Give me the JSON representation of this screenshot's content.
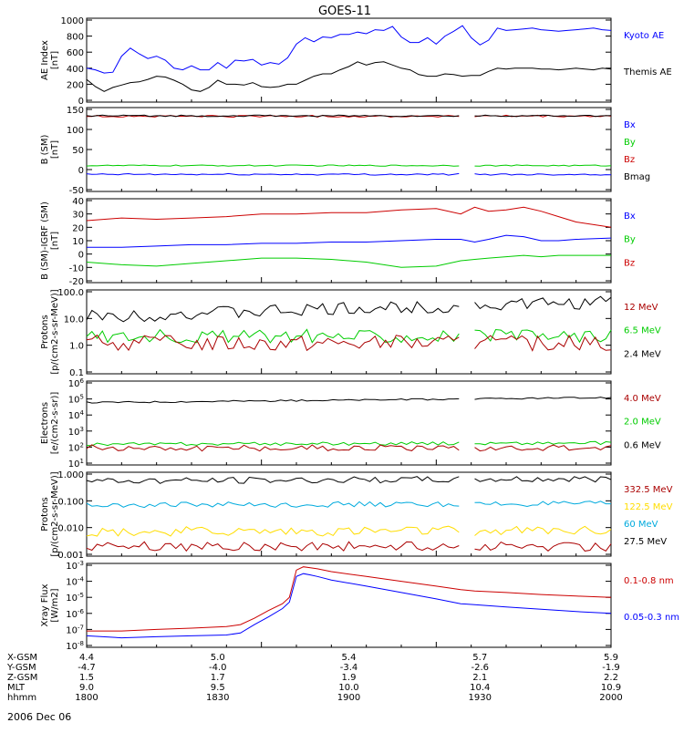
{
  "title": "GOES-11",
  "date_label": "2006 Dec 06",
  "colors": {
    "black": "#000000",
    "blue": "#0000ff",
    "red": "#cc0000",
    "green": "#00cc00",
    "cyan": "#00aadd",
    "yellow": "#ffdd00",
    "darkred": "#aa0000"
  },
  "time_axis": {
    "rows": [
      {
        "label": "X-GSM",
        "values": [
          "4.4",
          "5.0",
          "5.4",
          "5.7",
          "5.9"
        ]
      },
      {
        "label": "Y-GSM",
        "values": [
          "-4.7",
          "-4.0",
          "-3.4",
          "-2.6",
          "-1.9"
        ]
      },
      {
        "label": "Z-GSM",
        "values": [
          "1.5",
          "1.7",
          "1.9",
          "2.1",
          "2.2"
        ]
      },
      {
        "label": "MLT",
        "values": [
          "9.0",
          "9.5",
          "10.0",
          "10.4",
          "10.9"
        ]
      },
      {
        "label": "hhmm",
        "values": [
          "1800",
          "1830",
          "1900",
          "1930",
          "2000"
        ]
      }
    ]
  },
  "chart_data": [
    {
      "type": "line",
      "id": "ae",
      "ylabel": "AE Index\n[nT]",
      "ylim": [
        0,
        1000
      ],
      "yticks": [
        "0",
        "200",
        "400",
        "600",
        "800",
        "1000"
      ],
      "ytick_values": [
        0,
        200,
        400,
        600,
        800,
        1000
      ],
      "series": [
        {
          "name": "Kyoto AE",
          "color": "#0000ff",
          "x": [
            0,
            2,
            4,
            6,
            8,
            10,
            12,
            14,
            16,
            18,
            20,
            22,
            24,
            26,
            28,
            30,
            32,
            34,
            36,
            38,
            40,
            42,
            44,
            46,
            48,
            50,
            52,
            54,
            56,
            58,
            60,
            62,
            64,
            66,
            68,
            70,
            72,
            74,
            76,
            78,
            80,
            82,
            84,
            86,
            88,
            90,
            92,
            94,
            96,
            98,
            100,
            102,
            104,
            106,
            108,
            110,
            112,
            114,
            116,
            118,
            120
          ],
          "y": [
            400,
            380,
            340,
            350,
            550,
            650,
            580,
            520,
            550,
            500,
            400,
            380,
            430,
            380,
            380,
            470,
            400,
            500,
            490,
            510,
            440,
            470,
            450,
            530,
            700,
            780,
            730,
            790,
            780,
            820,
            820,
            850,
            830,
            880,
            870,
            920,
            790,
            720,
            720,
            780,
            700,
            800,
            860,
            930,
            780,
            690,
            750,
            900,
            870,
            880,
            890,
            900,
            880,
            870,
            860,
            870,
            880,
            890,
            900,
            880,
            870
          ]
        },
        {
          "name": "Themis AE",
          "color": "#000000",
          "x": [
            0,
            2,
            4,
            6,
            8,
            10,
            12,
            14,
            16,
            18,
            20,
            22,
            24,
            26,
            28,
            30,
            32,
            34,
            36,
            38,
            40,
            42,
            44,
            46,
            48,
            50,
            52,
            54,
            56,
            58,
            60,
            62,
            64,
            66,
            68,
            70,
            72,
            74,
            76,
            78,
            80,
            82,
            84,
            86,
            88,
            90,
            92,
            94,
            96,
            98,
            100,
            102,
            104,
            106,
            108,
            110,
            112,
            114,
            116,
            118,
            120
          ],
          "y": [
            260,
            170,
            110,
            160,
            190,
            220,
            230,
            260,
            300,
            290,
            250,
            200,
            130,
            110,
            160,
            250,
            200,
            200,
            190,
            220,
            170,
            160,
            170,
            200,
            200,
            250,
            300,
            330,
            330,
            380,
            420,
            480,
            440,
            470,
            480,
            440,
            400,
            380,
            320,
            300,
            300,
            330,
            320,
            300,
            310,
            310,
            360,
            400,
            390,
            400,
            400,
            400,
            390,
            390,
            380,
            390,
            400,
            390,
            380,
            400,
            390
          ]
        }
      ],
      "legend": [
        "Kyoto AE",
        "Themis AE"
      ]
    },
    {
      "type": "line",
      "id": "b_sm",
      "ylabel": "B (SM)\n[nT]",
      "ylim": [
        -50,
        150
      ],
      "yticks": [
        "-50",
        "0",
        "50",
        "100",
        "150"
      ],
      "ytick_values": [
        -50,
        0,
        50,
        100,
        150
      ],
      "gap": [
        107,
        111
      ],
      "series": [
        {
          "name": "Bx",
          "color": "#0000ff",
          "const": -12,
          "noise": 2
        },
        {
          "name": "By",
          "color": "#00cc00",
          "const": 10,
          "noise": 1.5
        },
        {
          "name": "Bz",
          "color": "#cc0000",
          "const": 133,
          "noise": 2.5
        },
        {
          "name": "Bmag",
          "color": "#000000",
          "const": 134,
          "noise": 2
        }
      ],
      "legend": [
        "Bx",
        "By",
        "Bz",
        "Bmag"
      ]
    },
    {
      "type": "line",
      "id": "b_sm_igrf",
      "ylabel": "B (SM)-IGRF (SM)\n[nT]",
      "ylim": [
        -20,
        40
      ],
      "yticks": [
        "-20",
        "-10",
        "0",
        "10",
        "20",
        "30",
        "40"
      ],
      "ytick_values": [
        -20,
        -10,
        0,
        10,
        20,
        30,
        40
      ],
      "gap": [
        107,
        111
      ],
      "series": [
        {
          "name": "Bx",
          "color": "#0000ff",
          "x": [
            0,
            10,
            20,
            30,
            40,
            50,
            60,
            70,
            80,
            90,
            100,
            107,
            111,
            115,
            120,
            125,
            130,
            135,
            140,
            150
          ],
          "y": [
            5,
            5,
            6,
            7,
            7,
            8,
            8,
            9,
            9,
            10,
            11,
            11,
            9,
            11,
            14,
            13,
            10,
            10,
            11,
            12
          ]
        },
        {
          "name": "By",
          "color": "#00cc00",
          "x": [
            0,
            10,
            20,
            30,
            40,
            50,
            60,
            70,
            80,
            90,
            100,
            107,
            111,
            115,
            120,
            125,
            130,
            135,
            140,
            150
          ],
          "y": [
            -6,
            -8,
            -9,
            -7,
            -5,
            -3,
            -3,
            -4,
            -6,
            -10,
            -9,
            -5,
            -4,
            -3,
            -2,
            -1,
            -2,
            -1,
            -1,
            -1
          ]
        },
        {
          "name": "Bz",
          "color": "#cc0000",
          "x": [
            0,
            10,
            20,
            30,
            40,
            50,
            60,
            70,
            80,
            90,
            100,
            107,
            111,
            115,
            120,
            125,
            130,
            135,
            140,
            150
          ],
          "y": [
            25,
            27,
            26,
            27,
            28,
            30,
            30,
            31,
            31,
            33,
            34,
            30,
            35,
            32,
            33,
            35,
            32,
            28,
            24,
            20
          ]
        }
      ],
      "legend": [
        "Bx",
        "By",
        "Bz"
      ]
    },
    {
      "type": "line",
      "id": "protons_low",
      "ylabel": "Protons\n[p/(cm2-s-sr-MeV)]",
      "yscale": "log",
      "ylim": [
        0.1,
        100
      ],
      "yticks": [
        "0.1",
        "1.0",
        "10.0",
        "100.0"
      ],
      "ytick_values": [
        0.1,
        1,
        10,
        100
      ],
      "gap": [
        107,
        111
      ],
      "series": [
        {
          "name": "2.4 MeV",
          "color": "#000000",
          "base": 12,
          "trend": 3.5,
          "noise": 0.25
        },
        {
          "name": "6.5 MeV",
          "color": "#00cc00",
          "base": 2.2,
          "trend": 1.0,
          "noise": 0.25
        },
        {
          "name": "12 MeV",
          "color": "#aa0000",
          "base": 1.2,
          "trend": 1.0,
          "noise": 0.3
        }
      ],
      "legend": [
        "12 MeV",
        "6.5 MeV",
        "2.4 MeV"
      ]
    },
    {
      "type": "line",
      "id": "electrons",
      "ylabel": "Electrons\n[e/(cm2-s-sr)]",
      "yscale": "log",
      "ylim": [
        10,
        1000000
      ],
      "yticks": [
        "10^1",
        "10^2",
        "10^3",
        "10^4",
        "10^5",
        "10^6"
      ],
      "ytick_values": [
        10,
        100,
        1000,
        10000,
        100000,
        1000000
      ],
      "gap": [
        107,
        111
      ],
      "series": [
        {
          "name": "0.6 MeV",
          "color": "#000000",
          "base": 60000,
          "trend": 2.0,
          "noise": 0.05
        },
        {
          "name": "2.0 MeV",
          "color": "#00cc00",
          "base": 150,
          "trend": 1.2,
          "noise": 0.1
        },
        {
          "name": "4.0 MeV",
          "color": "#aa0000",
          "base": 90,
          "trend": 1.0,
          "noise": 0.2
        }
      ],
      "legend": [
        "4.0 MeV",
        "2.0 MeV",
        "0.6 MeV"
      ]
    },
    {
      "type": "line",
      "id": "protons_high",
      "ylabel": "Protons\n[p/(cm2-s-sr-MeV)]",
      "yscale": "log",
      "ylim": [
        0.001,
        1
      ],
      "yticks": [
        "0.001",
        "0.010",
        "0.100",
        "1.000"
      ],
      "ytick_values": [
        0.001,
        0.01,
        0.1,
        1
      ],
      "gap": [
        107,
        111
      ],
      "series": [
        {
          "name": "27.5 MeV",
          "color": "#000000",
          "base": 0.55,
          "trend": 1.2,
          "noise": 0.12
        },
        {
          "name": "60 MeV",
          "color": "#00aadd",
          "base": 0.07,
          "trend": 1.1,
          "noise": 0.1
        },
        {
          "name": "122.5 MeV",
          "color": "#ffdd00",
          "base": 0.007,
          "trend": 1.1,
          "noise": 0.18
        },
        {
          "name": "332.5 MeV",
          "color": "#aa0000",
          "base": 0.002,
          "trend": 1.0,
          "noise": 0.18
        }
      ],
      "legend": [
        "332.5 MeV",
        "122.5 MeV",
        "60 MeV",
        "27.5 MeV"
      ]
    },
    {
      "type": "line",
      "id": "xray",
      "ylabel": "Xray Flux\n[W/m2]",
      "yscale": "log",
      "ylim": [
        1e-08,
        0.001
      ],
      "yticks": [
        "10^-8",
        "10^-7",
        "10^-6",
        "10^-5",
        "10^-4",
        "10^-3"
      ],
      "ytick_values": [
        1e-08,
        1e-07,
        1e-06,
        1e-05,
        0.0001,
        0.001
      ],
      "gap": [
        107,
        111
      ],
      "series": [
        {
          "name": "0.1-0.8 nm",
          "color": "#cc0000",
          "x": [
            0,
            10,
            20,
            30,
            40,
            44,
            48,
            52,
            56,
            58,
            60,
            62,
            64,
            66,
            70,
            80,
            90,
            100,
            107,
            111,
            120,
            130,
            140,
            150
          ],
          "y": [
            8e-08,
            8e-08,
            1e-07,
            1.2e-07,
            1.5e-07,
            2e-07,
            5e-07,
            1.5e-06,
            4e-06,
            1e-05,
            0.0005,
            0.0008,
            0.0007,
            0.0006,
            0.0004,
            0.0002,
            0.0001,
            5e-05,
            3e-05,
            2.5e-05,
            2e-05,
            1.5e-05,
            1.2e-05,
            1e-05
          ]
        },
        {
          "name": "0.05-0.3 nm",
          "color": "#0000ff",
          "x": [
            0,
            10,
            20,
            30,
            40,
            44,
            48,
            52,
            56,
            58,
            60,
            62,
            64,
            66,
            70,
            80,
            90,
            100,
            107,
            111,
            120,
            130,
            140,
            150
          ],
          "y": [
            4e-08,
            3e-08,
            3.5e-08,
            4e-08,
            4.5e-08,
            6e-08,
            2e-07,
            6e-07,
            2e-06,
            5e-06,
            0.0002,
            0.0003,
            0.00025,
            0.0002,
            0.00012,
            5e-05,
            2e-05,
            8e-06,
            4e-06,
            3.5e-06,
            2.5e-06,
            1.8e-06,
            1.3e-06,
            1e-06
          ]
        }
      ],
      "legend": [
        "0.1-0.8 nm",
        "0.05-0.3 nm"
      ]
    }
  ]
}
